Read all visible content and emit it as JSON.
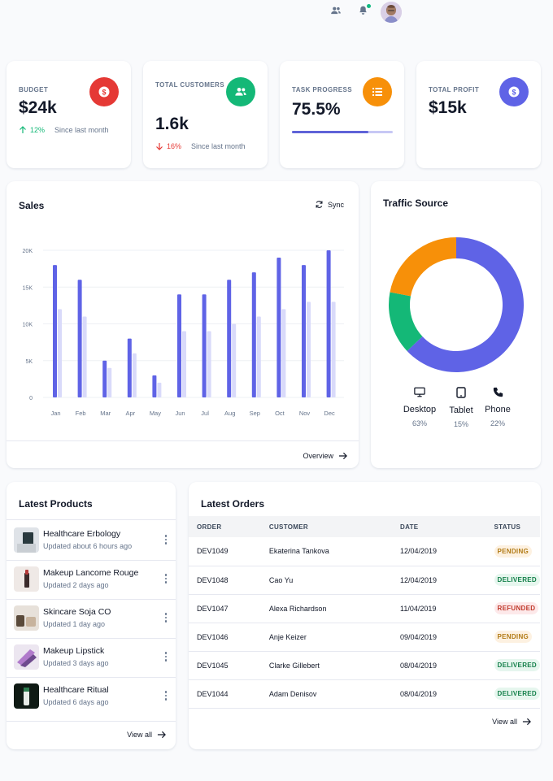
{
  "topbar": {
    "icons": [
      "users-icon",
      "bell-icon",
      "avatar"
    ]
  },
  "kpis": {
    "budget": {
      "label": "BUDGET",
      "value": "$24k",
      "delta": "12%",
      "since": "Since last month",
      "color": "#e53935"
    },
    "customers": {
      "label": "TOTAL CUSTOMERS",
      "value": "1.6k",
      "delta": "16%",
      "since": "Since last month",
      "color": "#14b877"
    },
    "task": {
      "label": "TASK PROGRESS",
      "value": "75.5%",
      "progress": 0.755,
      "color": "#f79009"
    },
    "profit": {
      "label": "TOTAL PROFIT",
      "value": "$15k",
      "color": "#5f63e6"
    }
  },
  "sales": {
    "title": "Sales",
    "sync_label": "Sync",
    "overview_label": "Overview"
  },
  "chart_data": [
    {
      "type": "bar",
      "title": "Sales",
      "categories": [
        "Jan",
        "Feb",
        "Mar",
        "Apr",
        "May",
        "Jun",
        "Jul",
        "Aug",
        "Sep",
        "Oct",
        "Nov",
        "Dec"
      ],
      "series": [
        {
          "values": [
            18000,
            16000,
            5000,
            8000,
            3000,
            14000,
            14000,
            16000,
            17000,
            19000,
            18000,
            20000
          ],
          "color": "#5f63e6"
        },
        {
          "values": [
            12000,
            11000,
            4000,
            6000,
            2000,
            9000,
            9000,
            10000,
            11000,
            12000,
            13000,
            13000
          ],
          "color": "#d9dafa"
        }
      ],
      "yticks": [
        "0",
        "5K",
        "10K",
        "15K",
        "20K"
      ],
      "ylim": [
        0,
        20000
      ],
      "grid": true
    },
    {
      "type": "pie",
      "title": "Traffic Source",
      "categories": [
        "Desktop",
        "Tablet",
        "Phone"
      ],
      "values": [
        63,
        15,
        22
      ],
      "colors": [
        "#5f63e6",
        "#14b877",
        "#f79009"
      ]
    }
  ],
  "traffic": {
    "title": "Traffic Source",
    "items": [
      {
        "label": "Desktop",
        "value": "63%"
      },
      {
        "label": "Tablet",
        "value": "15%"
      },
      {
        "label": "Phone",
        "value": "22%"
      }
    ]
  },
  "products": {
    "title": "Latest Products",
    "items": [
      {
        "name": "Healthcare Erbology",
        "updated": "Updated about 6 hours ago"
      },
      {
        "name": "Makeup Lancome Rouge",
        "updated": "Updated 2 days ago"
      },
      {
        "name": "Skincare Soja CO",
        "updated": "Updated 1 day ago"
      },
      {
        "name": "Makeup Lipstick",
        "updated": "Updated 3 days ago"
      },
      {
        "name": "Healthcare Ritual",
        "updated": "Updated 6 days ago"
      }
    ],
    "view_all": "View all"
  },
  "orders": {
    "title": "Latest Orders",
    "columns": [
      "ORDER",
      "CUSTOMER",
      "DATE",
      "STATUS"
    ],
    "rows": [
      {
        "order": "DEV1049",
        "customer": "Ekaterina Tankova",
        "date": "12/04/2019",
        "status": "PENDING",
        "kind": "pending"
      },
      {
        "order": "DEV1048",
        "customer": "Cao Yu",
        "date": "12/04/2019",
        "status": "DELIVERED",
        "kind": "delivered"
      },
      {
        "order": "DEV1047",
        "customer": "Alexa Richardson",
        "date": "11/04/2019",
        "status": "REFUNDED",
        "kind": "refunded"
      },
      {
        "order": "DEV1046",
        "customer": "Anje Keizer",
        "date": "09/04/2019",
        "status": "PENDING",
        "kind": "pending"
      },
      {
        "order": "DEV1045",
        "customer": "Clarke Gillebert",
        "date": "08/04/2019",
        "status": "DELIVERED",
        "kind": "delivered"
      },
      {
        "order": "DEV1044",
        "customer": "Adam Denisov",
        "date": "08/04/2019",
        "status": "DELIVERED",
        "kind": "delivered"
      }
    ],
    "view_all": "View all"
  }
}
